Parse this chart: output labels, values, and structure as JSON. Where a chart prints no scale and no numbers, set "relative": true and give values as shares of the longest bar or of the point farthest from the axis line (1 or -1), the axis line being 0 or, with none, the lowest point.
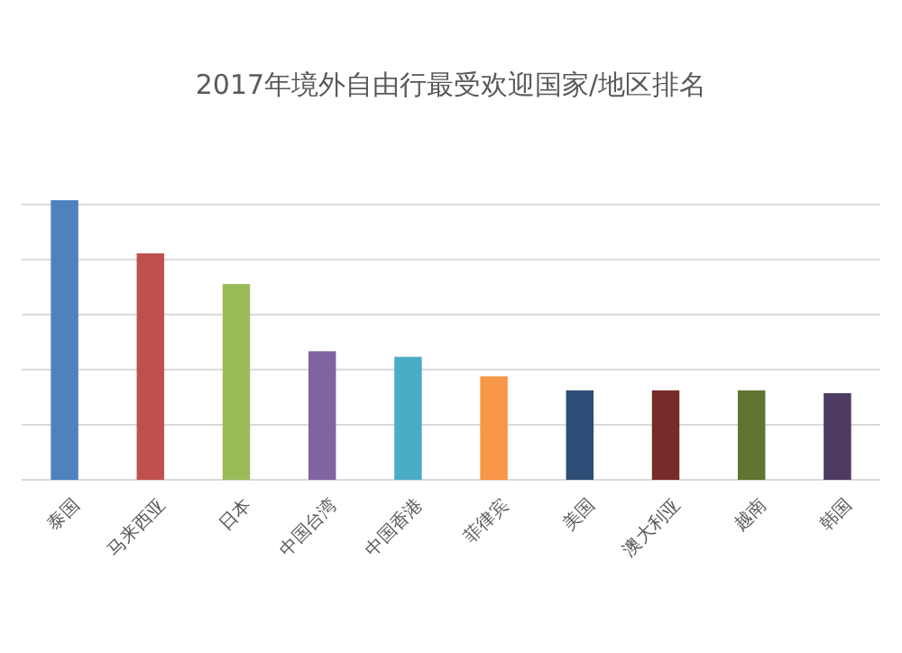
{
  "chart_data": {
    "type": "bar",
    "title": "2017年境外自由行最受欢迎国家/地区排名",
    "categories": [
      "泰国",
      "马来西亚",
      "日本",
      "中国台湾",
      "中国香港",
      "菲律宾",
      "美国",
      "澳大利亚",
      "越南",
      "韩国"
    ],
    "values": [
      1,
      0.81,
      0.7,
      0.46,
      0.44,
      0.37,
      0.32,
      0.32,
      0.32,
      0.31
    ],
    "colors": [
      "#4f81bd",
      "#c0504d",
      "#9bbb59",
      "#8064a2",
      "#4bacc6",
      "#f79646",
      "#2c4d75",
      "#772c2a",
      "#5f7530",
      "#4d3b62"
    ],
    "relative": true,
    "grid": true
  }
}
